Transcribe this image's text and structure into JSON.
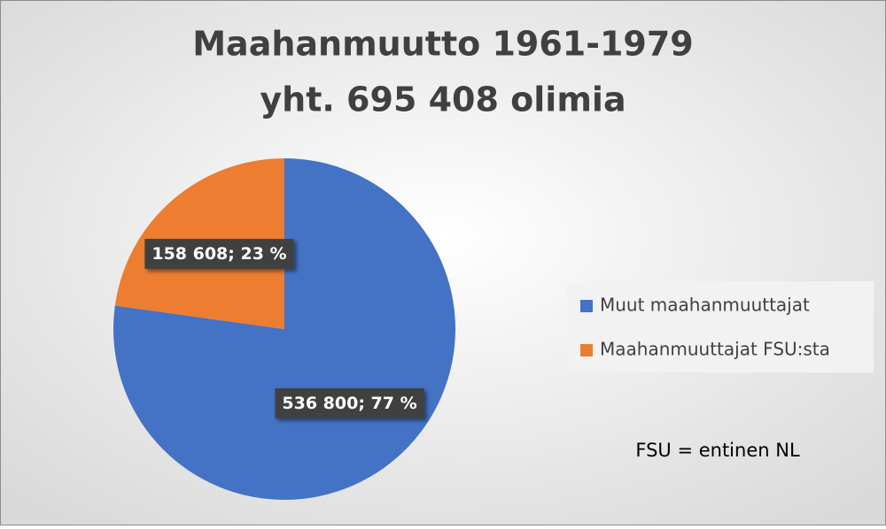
{
  "chart_data": {
    "type": "pie",
    "title": [
      "Maahanmuutto 1961-1979",
      "yht. 695 408 olimia"
    ],
    "categories": [
      "Muut maahanmuuttajat",
      "Maahanmuuttajat FSU:sta"
    ],
    "values": [
      536800,
      158608
    ],
    "value_labels": [
      "536 800; 77 %",
      "158 608; 23 %"
    ],
    "colors": [
      "#4472c4",
      "#ed7d31"
    ],
    "legend": "right",
    "annotation": "FSU = entinen NL"
  }
}
